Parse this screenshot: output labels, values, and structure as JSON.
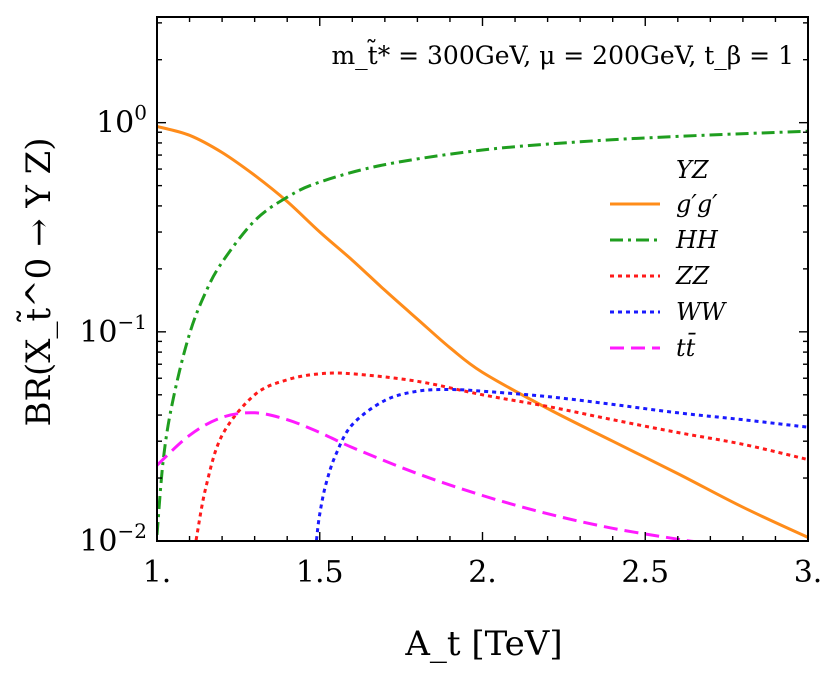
{
  "chart_data": {
    "type": "line",
    "x_scale": "linear",
    "y_scale": "log",
    "xlim": [
      1.0,
      3.0
    ],
    "ylim": [
      0.01,
      3.2
    ],
    "xlabel": "A_t [TeV]",
    "ylabel": "BR(X_t̃^0 → Y Z)",
    "x_ticks": [
      {
        "value": 1.0,
        "label": "1."
      },
      {
        "value": 1.5,
        "label": "1.5"
      },
      {
        "value": 2.0,
        "label": "2."
      },
      {
        "value": 2.5,
        "label": "2.5"
      },
      {
        "value": 3.0,
        "label": "3."
      }
    ],
    "y_ticks": [
      {
        "value": 0.01,
        "base": "10",
        "exp": "−2"
      },
      {
        "value": 0.1,
        "base": "10",
        "exp": "−1"
      },
      {
        "value": 1.0,
        "base": "10",
        "exp": "0"
      }
    ],
    "annotation": "m_t̃* = 300GeV, μ = 200GeV, t_β = 1",
    "legend_title": "YZ",
    "legend_position": "right",
    "series": [
      {
        "name": "g′g′",
        "color": "#ff8c1a",
        "dash": "solid",
        "x": [
          1.0,
          1.1,
          1.2,
          1.3,
          1.4,
          1.5,
          1.6,
          1.7,
          1.8,
          1.9,
          2.0,
          2.2,
          2.4,
          2.6,
          2.8,
          3.0
        ],
        "values": [
          0.96,
          0.87,
          0.72,
          0.56,
          0.42,
          0.3,
          0.22,
          0.158,
          0.115,
          0.084,
          0.064,
          0.043,
          0.03,
          0.021,
          0.0145,
          0.0104
        ]
      },
      {
        "name": "HH",
        "color": "#1f9e1f",
        "dash": "dashdot",
        "x": [
          1.0,
          1.02,
          1.05,
          1.1,
          1.15,
          1.2,
          1.3,
          1.4,
          1.5,
          1.7,
          2.0,
          2.3,
          2.6,
          3.0
        ],
        "values": [
          0.0107,
          0.025,
          0.048,
          0.098,
          0.155,
          0.215,
          0.34,
          0.44,
          0.52,
          0.63,
          0.74,
          0.81,
          0.86,
          0.91
        ]
      },
      {
        "name": "ZZ",
        "color": "#ff1a1a",
        "dash": "dotted",
        "x": [
          1.12,
          1.15,
          1.2,
          1.3,
          1.4,
          1.5,
          1.6,
          1.8,
          2.0,
          2.2,
          2.4,
          2.6,
          2.8,
          3.0
        ],
        "values": [
          0.0101,
          0.018,
          0.032,
          0.05,
          0.059,
          0.063,
          0.063,
          0.058,
          0.05,
          0.044,
          0.038,
          0.033,
          0.029,
          0.0245
        ]
      },
      {
        "name": "WW",
        "color": "#1a1aff",
        "dash": "dotted",
        "x": [
          1.49,
          1.5,
          1.52,
          1.55,
          1.6,
          1.7,
          1.8,
          1.9,
          2.0,
          2.2,
          2.4,
          2.6,
          2.8,
          3.0
        ],
        "values": [
          0.0101,
          0.0135,
          0.019,
          0.026,
          0.036,
          0.047,
          0.052,
          0.053,
          0.052,
          0.049,
          0.045,
          0.041,
          0.038,
          0.035
        ]
      },
      {
        "name": "tt̄",
        "color": "#ff1aff",
        "dash": "dashed",
        "x": [
          1.0,
          1.1,
          1.2,
          1.3,
          1.4,
          1.5,
          1.6,
          1.8,
          2.0,
          2.2,
          2.4,
          2.6,
          2.66
        ],
        "values": [
          0.023,
          0.032,
          0.039,
          0.041,
          0.038,
          0.033,
          0.028,
          0.021,
          0.0165,
          0.0135,
          0.0115,
          0.0102,
          0.0099
        ]
      }
    ]
  }
}
